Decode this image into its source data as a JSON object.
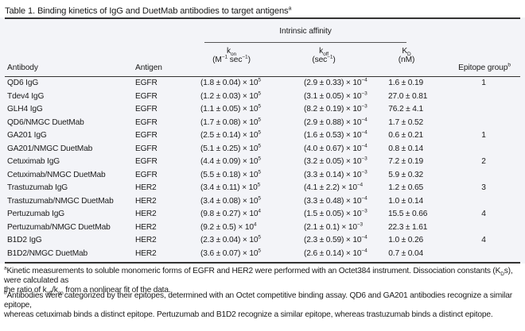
{
  "caption": {
    "text": "Table 1. Binding kinetics of IgG and DuetMab antibodies to target antigens",
    "mark": "a"
  },
  "headers": {
    "group": "Intrinsic affinity",
    "antibody": "Antibody",
    "antigen": "Antigen",
    "kon_symbol": "k",
    "kon_sub": "on",
    "kon_units_a": "(M",
    "kon_units_b": "sec",
    "kon_units_c": ")",
    "koff_symbol": "k",
    "koff_sub": "off",
    "koff_units_a": "(sec",
    "koff_units_c": ")",
    "kd_symbol": "K",
    "kd_sub": "D",
    "kd_units": "(nM)",
    "epitope": "Epitope group",
    "epitope_mark": "b",
    "neg1": "−1"
  },
  "rows": [
    {
      "antibody": "QD6 IgG",
      "antigen": "EGFR",
      "kon": "(1.8 ± 0.04) × 10",
      "kon_exp": "5",
      "koff": "(2.9 ± 0.33) × 10",
      "koff_exp": "−4",
      "kd": "1.6 ± 0.19",
      "epitope": "1"
    },
    {
      "antibody": "Tdev4 IgG",
      "antigen": "EGFR",
      "kon": "(1.2 ± 0.03) × 10",
      "kon_exp": "5",
      "koff": "(3.1 ± 0.05) × 10",
      "koff_exp": "−3",
      "kd": "27.0 ± 0.81",
      "epitope": ""
    },
    {
      "antibody": "GLH4 IgG",
      "antigen": "EGFR",
      "kon": "(1.1 ± 0.05) × 10",
      "kon_exp": "5",
      "koff": "(8.2 ± 0.19) × 10",
      "koff_exp": "−3",
      "kd": "76.2 ± 4.1",
      "epitope": ""
    },
    {
      "antibody": "QD6/NMGC DuetMab",
      "antigen": "EGFR",
      "kon": "(1.7 ± 0.08) × 10",
      "kon_exp": "5",
      "koff": "(2.9 ± 0.88) × 10",
      "koff_exp": "−4",
      "kd": "1.7 ± 0.52",
      "epitope": ""
    },
    {
      "antibody": "GA201 IgG",
      "antigen": "EGFR",
      "kon": "(2.5 ± 0.14) × 10",
      "kon_exp": "5",
      "koff": "(1.6 ± 0.53) × 10",
      "koff_exp": "−4",
      "kd": "0.6 ± 0.21",
      "epitope": "1"
    },
    {
      "antibody": "GA201/NMGC DuetMab",
      "antigen": "EGFR",
      "kon": "(5.1 ± 0.25) × 10",
      "kon_exp": "5",
      "koff": "(4.0 ± 0.67) × 10",
      "koff_exp": "−4",
      "kd": "0.8 ± 0.14",
      "epitope": ""
    },
    {
      "antibody": "Cetuximab IgG",
      "antigen": "EGFR",
      "kon": "(4.4 ± 0.09) × 10",
      "kon_exp": "5",
      "koff": "(3.2 ± 0.05) × 10",
      "koff_exp": "−3",
      "kd": "7.2 ± 0.19",
      "epitope": "2"
    },
    {
      "antibody": "Cetuximab/NMGC DuetMab",
      "antigen": "EGFR",
      "kon": "(5.5 ± 0.18) × 10",
      "kon_exp": "5",
      "koff": "(3.3 ± 0.14) × 10",
      "koff_exp": "−3",
      "kd": "5.9 ± 0.32",
      "epitope": ""
    },
    {
      "antibody": "Trastuzumab IgG",
      "antigen": "HER2",
      "kon": "(3.4 ± 0.11) × 10",
      "kon_exp": "5",
      "koff": "(4.1 ± 2.2) × 10",
      "koff_exp": "−4",
      "kd": "1.2 ± 0.65",
      "epitope": "3"
    },
    {
      "antibody": "Trastuzumab/NMGC DuetMab",
      "antigen": "HER2",
      "kon": "(3.4 ± 0.08) × 10",
      "kon_exp": "5",
      "koff": "(3.3 ± 0.48) × 10",
      "koff_exp": "−4",
      "kd": "1.0 ± 0.14",
      "epitope": ""
    },
    {
      "antibody": "Pertuzumab IgG",
      "antigen": "HER2",
      "kon": "(9.8 ± 0.27) × 10",
      "kon_exp": "4",
      "koff": "(1.5 ± 0.05) × 10",
      "koff_exp": "−3",
      "kd": "15.5 ± 0.66",
      "epitope": "4"
    },
    {
      "antibody": "Pertuzumab/NMGC DuetMab",
      "antigen": "HER2",
      "kon": "(9.2 ± 0.5) × 10",
      "kon_exp": "4",
      "koff": "(2.1 ± 0.1) × 10",
      "koff_exp": "−3",
      "kd": "22.3 ± 1.61",
      "epitope": ""
    },
    {
      "antibody": "B1D2 IgG",
      "antigen": "HER2",
      "kon": "(2.3 ± 0.04) × 10",
      "kon_exp": "5",
      "koff": "(2.3 ± 0.59) × 10",
      "koff_exp": "−4",
      "kd": "1.0 ± 0.26",
      "epitope": "4"
    },
    {
      "antibody": "B1D2/NMGC DuetMab",
      "antigen": "HER2",
      "kon": "(3.6 ± 0.07) × 10",
      "kon_exp": "5",
      "koff": "(2.6 ± 0.14) × 10",
      "koff_exp": "−4",
      "kd": "0.7 ± 0.04",
      "epitope": ""
    }
  ],
  "footnotes": {
    "a_mark": "a",
    "a_1": "Kinetic measurements to soluble monomeric forms of EGFR and HER2 were performed with an Octet384 instrument. Dissociation constants (K",
    "a_2": "s), were calculated as",
    "a_3": "the ratio of k",
    "a_4": "/k",
    "a_5": " from a nonlinear fit of the data.",
    "sub_D": "D",
    "sub_off": "off",
    "sub_on": "on",
    "b_mark": "b",
    "b_1": "Antibodies were categorized by their epitopes, determined with an Octet competitive binding assay. QD6 and GA201 antibodies recognize a similar epitope,",
    "b_2": "whereas cetuximab binds a distinct epitope. Pertuzumab and B1D2 recognize a similar epitope, whereas trastuzumab binds a distinct epitope."
  }
}
